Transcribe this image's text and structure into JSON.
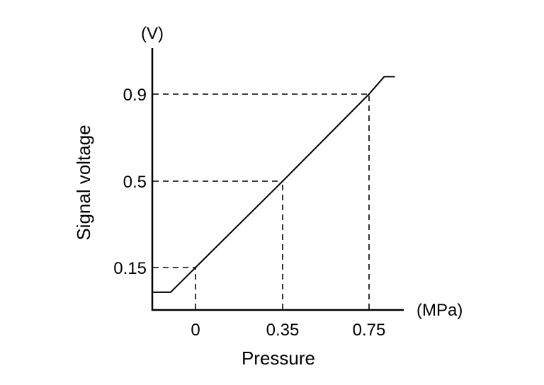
{
  "chart_data": {
    "type": "line",
    "title": "",
    "xlabel": "Pressure",
    "ylabel": "Signal voltage",
    "x_unit": "(MPa)",
    "y_unit": "(V)",
    "x_ticks": [
      "0",
      "0.35",
      "0.75"
    ],
    "x_tick_values": [
      0,
      0.35,
      0.75
    ],
    "y_ticks": [
      "0.15",
      "0.5",
      "0.9"
    ],
    "y_tick_values": [
      0.15,
      0.5,
      0.9
    ],
    "grid": false,
    "reference_lines": "dashed guides from each tick to the curve",
    "series": [
      {
        "points": [
          [
            -0.17,
            0.05
          ],
          [
            -0.1,
            0.05
          ],
          [
            0,
            0.15
          ],
          [
            0.35,
            0.5
          ],
          [
            0.75,
            0.9
          ],
          [
            0.82,
            0.98
          ],
          [
            0.87,
            0.98
          ]
        ]
      }
    ],
    "color": "#000000"
  }
}
